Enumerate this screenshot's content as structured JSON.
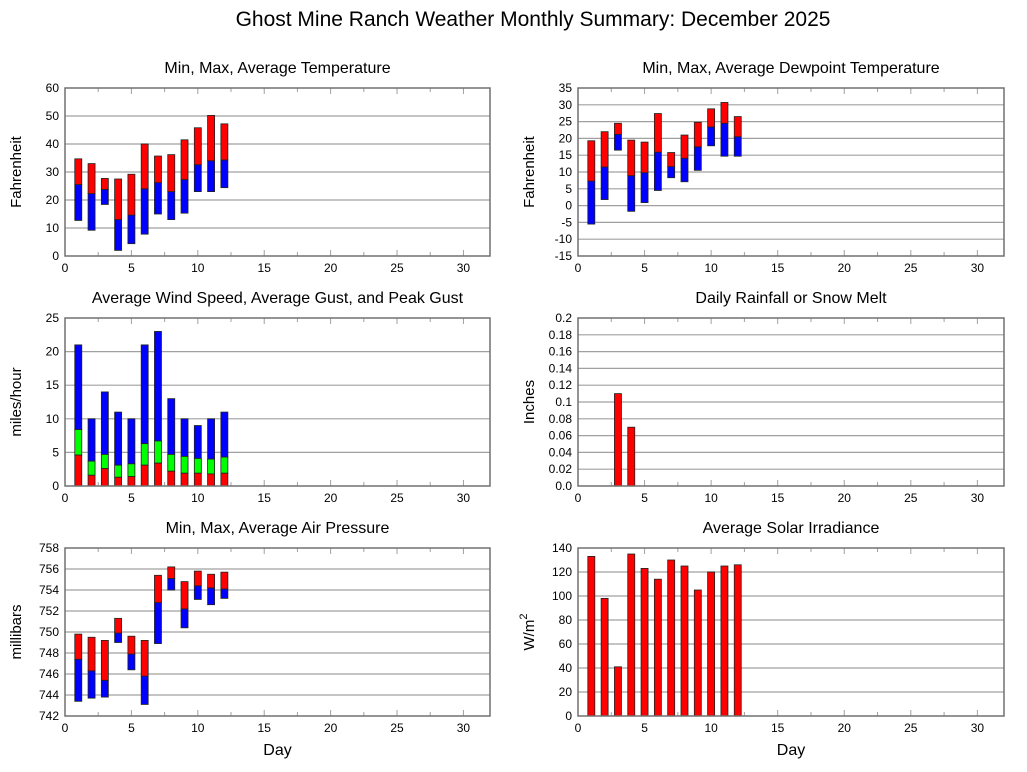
{
  "page": {
    "title": "Ghost Mine Ranch Weather Monthly Summary: December 2025"
  },
  "colors": {
    "red": "#ff0000",
    "blue": "#0000ff",
    "green": "#00ff00",
    "grid": "#a0a0a0",
    "frame": "#707070"
  },
  "chart_data": [
    {
      "id": "temperature",
      "type": "bar",
      "title": "Min, Max, Average Temperature",
      "xlabel": "",
      "ylabel": "Fahrenheit",
      "xlim": [
        0,
        32
      ],
      "ylim": [
        0,
        60
      ],
      "xticks": [
        0,
        5,
        10,
        15,
        20,
        25,
        30
      ],
      "yticks": [
        0,
        10,
        20,
        30,
        40,
        50,
        60
      ],
      "yticklabels": [
        "0",
        "10",
        "20",
        "30",
        "40",
        "50",
        "60"
      ],
      "grid": true,
      "style": "floating-range",
      "x": [
        1,
        2,
        3,
        4,
        5,
        6,
        7,
        8,
        9,
        10,
        11,
        12
      ],
      "series": [
        {
          "name": "Min",
          "values": [
            12.7,
            9.2,
            18.4,
            2.0,
            4.4,
            7.8,
            15.0,
            13.0,
            15.3,
            23.0,
            23.0,
            24.4
          ]
        },
        {
          "name": "Average",
          "values": [
            25.5,
            22.3,
            23.8,
            13.0,
            14.6,
            24.0,
            26.2,
            23.0,
            27.3,
            32.6,
            34.0,
            34.3
          ]
        },
        {
          "name": "Max",
          "values": [
            34.7,
            33.0,
            27.7,
            27.5,
            29.2,
            40.0,
            35.7,
            36.2,
            41.5,
            45.8,
            50.2,
            47.2
          ]
        }
      ]
    },
    {
      "id": "dewpoint",
      "type": "bar",
      "title": "Min, Max, Average Dewpoint Temperature",
      "xlabel": "",
      "ylabel": "Fahrenheit",
      "xlim": [
        0,
        32
      ],
      "ylim": [
        -15,
        35
      ],
      "xticks": [
        0,
        5,
        10,
        15,
        20,
        25,
        30
      ],
      "yticks": [
        -15,
        -10,
        -5,
        0,
        5,
        10,
        15,
        20,
        25,
        30,
        35
      ],
      "yticklabels": [
        "-15",
        "-10",
        "-5",
        "0",
        "5",
        "10",
        "15",
        "20",
        "25",
        "30",
        "35"
      ],
      "grid": true,
      "style": "floating-range",
      "x": [
        1,
        2,
        3,
        4,
        5,
        6,
        7,
        8,
        9,
        10,
        11,
        12
      ],
      "series": [
        {
          "name": "Min",
          "values": [
            -5.5,
            1.8,
            16.5,
            -1.7,
            0.9,
            4.5,
            8.3,
            7.1,
            10.5,
            17.8,
            14.7,
            14.7
          ]
        },
        {
          "name": "Average",
          "values": [
            7.3,
            11.5,
            21.2,
            8.9,
            9.8,
            15.9,
            11.6,
            14.1,
            17.5,
            23.4,
            24.5,
            20.5
          ]
        },
        {
          "name": "Max",
          "values": [
            19.3,
            22.0,
            24.5,
            19.5,
            18.9,
            27.4,
            15.8,
            21.0,
            24.8,
            28.8,
            30.7,
            26.5
          ]
        }
      ]
    },
    {
      "id": "wind",
      "type": "bar",
      "title": "Average Wind Speed, Average Gust, and Peak Gust",
      "xlabel": "",
      "ylabel": "miles/hour",
      "xlim": [
        0,
        32
      ],
      "ylim": [
        0,
        25
      ],
      "xticks": [
        0,
        5,
        10,
        15,
        20,
        25,
        30
      ],
      "yticks": [
        0,
        5,
        10,
        15,
        20,
        25
      ],
      "yticklabels": [
        "0",
        "5",
        "10",
        "15",
        "20",
        "25"
      ],
      "grid": true,
      "style": "overlaid-from-zero",
      "x": [
        1,
        2,
        3,
        4,
        5,
        6,
        7,
        8,
        9,
        10,
        11,
        12
      ],
      "series": [
        {
          "name": "Average Wind Speed",
          "values": [
            4.6,
            1.6,
            2.6,
            1.3,
            1.4,
            3.1,
            3.4,
            2.2,
            1.9,
            1.9,
            1.8,
            1.9
          ]
        },
        {
          "name": "Average Gust",
          "values": [
            8.4,
            3.7,
            4.7,
            3.1,
            3.3,
            6.3,
            6.7,
            4.7,
            4.4,
            4.1,
            4.0,
            4.3
          ]
        },
        {
          "name": "Peak Gust",
          "values": [
            21,
            10,
            14,
            11,
            10,
            21,
            23,
            13,
            10,
            9,
            10,
            11
          ]
        }
      ]
    },
    {
      "id": "rain",
      "type": "bar",
      "title": "Daily Rainfall or Snow Melt",
      "xlabel": "",
      "ylabel": "Inches",
      "xlim": [
        0,
        32
      ],
      "ylim": [
        0,
        0.2
      ],
      "xticks": [
        0,
        5,
        10,
        15,
        20,
        25,
        30
      ],
      "yticks": [
        0,
        0.02,
        0.04,
        0.06,
        0.08,
        0.1,
        0.12,
        0.14,
        0.16,
        0.18,
        0.2
      ],
      "yticklabels": [
        "0.0",
        "0.02",
        "0.04",
        "0.06",
        "0.08",
        "0.1",
        "0.12",
        "0.14",
        "0.16",
        "0.18",
        "0.2"
      ],
      "grid": true,
      "style": "single",
      "x": [
        1,
        2,
        3,
        4,
        5,
        6,
        7,
        8,
        9,
        10,
        11,
        12
      ],
      "series": [
        {
          "name": "Rainfall",
          "values": [
            0,
            0,
            0.11,
            0.07,
            0,
            0,
            0,
            0,
            0,
            0,
            0,
            0
          ]
        }
      ]
    },
    {
      "id": "pressure",
      "type": "bar",
      "title": "Min, Max, Average Air Pressure",
      "xlabel": "Day",
      "ylabel": "millibars",
      "xlim": [
        0,
        32
      ],
      "ylim": [
        742,
        758
      ],
      "xticks": [
        0,
        5,
        10,
        15,
        20,
        25,
        30
      ],
      "yticks": [
        742,
        744,
        746,
        748,
        750,
        752,
        754,
        756,
        758
      ],
      "yticklabels": [
        "742",
        "744",
        "746",
        "748",
        "750",
        "752",
        "754",
        "756",
        "758"
      ],
      "grid": true,
      "style": "floating-range",
      "x": [
        1,
        2,
        3,
        4,
        5,
        6,
        7,
        8,
        9,
        10,
        11,
        12
      ],
      "series": [
        {
          "name": "Min",
          "values": [
            743.4,
            743.7,
            743.8,
            749.0,
            746.4,
            743.1,
            748.9,
            754.0,
            750.4,
            753.1,
            752.6,
            753.2
          ]
        },
        {
          "name": "Average",
          "values": [
            747.4,
            746.3,
            745.4,
            749.9,
            747.9,
            745.8,
            752.8,
            755.1,
            752.2,
            754.4,
            754.2,
            754.1
          ]
        },
        {
          "name": "Max",
          "values": [
            749.8,
            749.5,
            749.2,
            751.3,
            749.6,
            749.2,
            755.4,
            756.2,
            754.8,
            755.8,
            755.5,
            755.7
          ]
        }
      ]
    },
    {
      "id": "solar",
      "type": "bar",
      "title": "Average Solar Irradiance",
      "xlabel": "Day",
      "ylabel": "W/m",
      "ylabel_superscript": "2",
      "xlim": [
        0,
        32
      ],
      "ylim": [
        0,
        140
      ],
      "xticks": [
        0,
        5,
        10,
        15,
        20,
        25,
        30
      ],
      "yticks": [
        0,
        20,
        40,
        60,
        80,
        100,
        120,
        140
      ],
      "yticklabels": [
        "0",
        "20",
        "40",
        "60",
        "80",
        "100",
        "120",
        "140"
      ],
      "grid": true,
      "style": "single",
      "x": [
        1,
        2,
        3,
        4,
        5,
        6,
        7,
        8,
        9,
        10,
        11,
        12
      ],
      "series": [
        {
          "name": "Solar Irradiance",
          "values": [
            133,
            98,
            41,
            135,
            123,
            114,
            130,
            125,
            105,
            120,
            125,
            126
          ]
        }
      ]
    }
  ]
}
